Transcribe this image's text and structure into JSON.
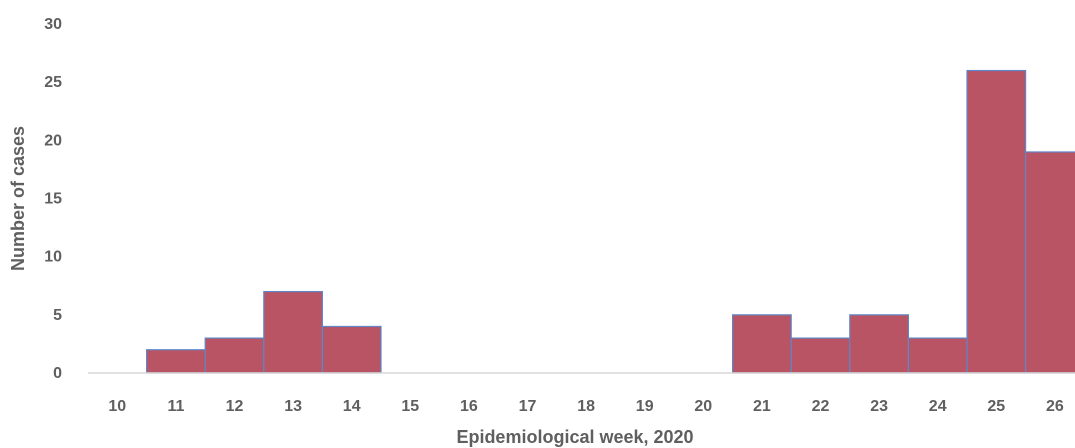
{
  "chart_data": {
    "type": "bar",
    "title": "",
    "xlabel": "Epidemiological week, 2020",
    "ylabel": "Number of cases",
    "categories": [
      "10",
      "11",
      "12",
      "13",
      "14",
      "15",
      "16",
      "17",
      "18",
      "19",
      "20",
      "21",
      "22",
      "23",
      "24",
      "25",
      "26"
    ],
    "values": [
      0,
      2,
      3,
      7,
      4,
      0,
      0,
      0,
      0,
      0,
      0,
      5,
      3,
      5,
      3,
      26,
      19
    ],
    "ylim": [
      0,
      30
    ],
    "yticks": [
      "0",
      "5",
      "10",
      "15",
      "20",
      "25",
      "30"
    ],
    "grid": false,
    "legend": "none",
    "colors": {
      "bar_fill": "#b85464",
      "bar_edge": "#5f86c6",
      "text": "#5f5f5f",
      "axis": "#d9d9d9"
    }
  }
}
